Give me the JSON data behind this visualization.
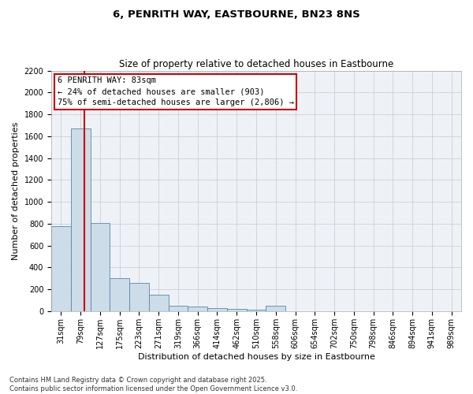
{
  "title": "6, PENRITH WAY, EASTBOURNE, BN23 8NS",
  "subtitle": "Size of property relative to detached houses in Eastbourne",
  "xlabel": "Distribution of detached houses by size in Eastbourne",
  "ylabel": "Number of detached properties",
  "categories": [
    "31sqm",
    "79sqm",
    "127sqm",
    "175sqm",
    "223sqm",
    "271sqm",
    "319sqm",
    "366sqm",
    "414sqm",
    "462sqm",
    "510sqm",
    "558sqm",
    "606sqm",
    "654sqm",
    "702sqm",
    "750sqm",
    "798sqm",
    "846sqm",
    "894sqm",
    "941sqm",
    "989sqm"
  ],
  "values": [
    780,
    1670,
    810,
    300,
    260,
    150,
    50,
    40,
    30,
    20,
    15,
    50,
    0,
    0,
    0,
    0,
    0,
    0,
    0,
    0,
    0
  ],
  "bar_color": "#ccdce8",
  "bar_edge_color": "#5588aa",
  "red_line_x": 1.18,
  "annotation_title": "6 PENRITH WAY: 83sqm",
  "annotation_line1": "← 24% of detached houses are smaller (903)",
  "annotation_line2": "75% of semi-detached houses are larger (2,806) →",
  "annotation_color": "#cc0000",
  "ylim": [
    0,
    2200
  ],
  "yticks": [
    0,
    200,
    400,
    600,
    800,
    1000,
    1200,
    1400,
    1600,
    1800,
    2000,
    2200
  ],
  "footer1": "Contains HM Land Registry data © Crown copyright and database right 2025.",
  "footer2": "Contains public sector information licensed under the Open Government Licence v3.0.",
  "background_color": "#eef2f7",
  "grid_color": "#c8c8d0",
  "title_fontsize": 9.5,
  "subtitle_fontsize": 8.5,
  "xlabel_fontsize": 8,
  "ylabel_fontsize": 8,
  "tick_fontsize": 7,
  "annotation_fontsize": 7.5,
  "footer_fontsize": 6
}
